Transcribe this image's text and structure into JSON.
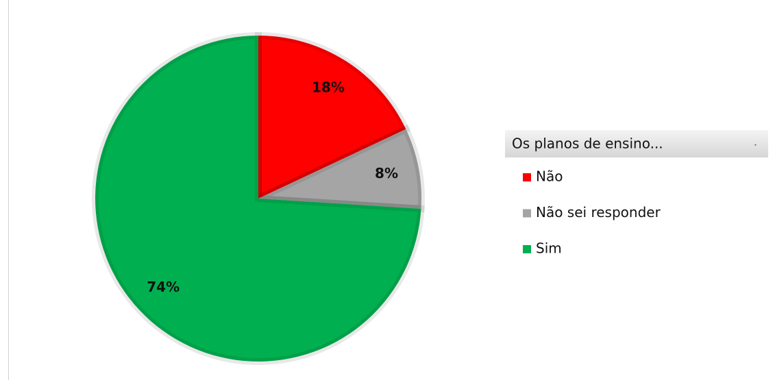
{
  "chart_data": {
    "type": "pie",
    "legend_title": "Os planos de ensino...",
    "categories": [
      "Não",
      "Não sei responder",
      "Sim"
    ],
    "values": [
      18,
      8,
      74
    ],
    "value_labels": [
      "18%",
      "8%",
      "74%"
    ],
    "colors": [
      "#ff0000",
      "#a5a5a5",
      "#00b050"
    ]
  }
}
